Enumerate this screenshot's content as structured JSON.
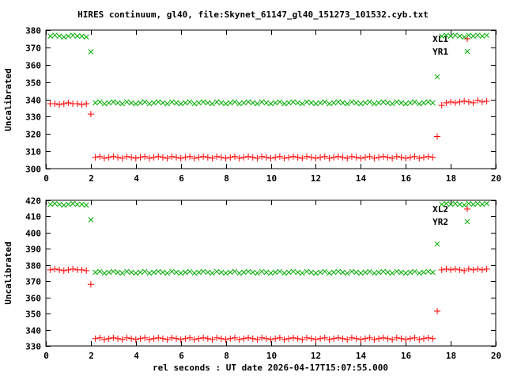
{
  "title": "HIRES continuum, gl40, file:Skynet_61147_gl40_151273_101532.cyb.txt",
  "xlabel": "rel seconds : UT date 2026-04-17T15:07:55.000",
  "colors": {
    "foreground": "#000000",
    "background": "#ffffff",
    "series_red": "#ff0000",
    "series_green": "#00aa00"
  },
  "chart_data": [
    {
      "type": "scatter",
      "panel": "top",
      "ylabel": "Uncalibrated",
      "xlim": [
        0,
        20
      ],
      "ylim": [
        300,
        380
      ],
      "xticks": [
        0,
        2,
        4,
        6,
        8,
        10,
        12,
        14,
        16,
        18,
        20
      ],
      "yticks": [
        300,
        310,
        320,
        330,
        340,
        350,
        360,
        370,
        380
      ],
      "grid": false,
      "legend": {
        "position": "top-right-inside",
        "entries": [
          "XL1",
          "YR1"
        ]
      },
      "x": [
        0.2,
        0.4,
        0.6,
        0.8,
        1,
        1.2,
        1.4,
        1.6,
        1.8,
        2,
        2.2,
        2.4,
        2.6,
        2.8,
        3,
        3.2,
        3.4,
        3.6,
        3.8,
        4,
        4.2,
        4.4,
        4.6,
        4.8,
        5,
        5.2,
        5.4,
        5.6,
        5.8,
        6,
        6.2,
        6.4,
        6.6,
        6.8,
        7,
        7.2,
        7.4,
        7.6,
        7.8,
        8,
        8.2,
        8.4,
        8.6,
        8.8,
        9,
        9.2,
        9.4,
        9.6,
        9.8,
        10,
        10.2,
        10.4,
        10.6,
        10.8,
        11,
        11.2,
        11.4,
        11.6,
        11.8,
        12,
        12.2,
        12.4,
        12.6,
        12.8,
        13,
        13.2,
        13.4,
        13.6,
        13.8,
        14,
        14.2,
        14.4,
        14.6,
        14.8,
        15,
        15.2,
        15.4,
        15.6,
        15.8,
        16,
        16.2,
        16.4,
        16.6,
        16.8,
        17,
        17.2,
        17.4,
        17.6,
        17.8,
        18,
        18.2,
        18.4,
        18.6,
        18.8,
        19,
        19.2,
        19.4,
        19.6
      ],
      "series": [
        {
          "name": "XL1",
          "marker": "plus",
          "color": "#ff0000",
          "y": [
            337.5,
            337.5,
            337,
            337.5,
            338,
            337.5,
            337.5,
            337,
            337.5,
            331.5,
            306.5,
            307,
            306,
            306.5,
            307,
            306.5,
            306,
            307,
            306.5,
            306,
            306.5,
            307,
            306,
            306.5,
            307,
            306.5,
            306,
            307,
            306.5,
            306,
            306.5,
            307,
            306,
            306.5,
            307,
            306.5,
            306,
            307,
            306.5,
            306,
            306.5,
            307,
            306,
            306.5,
            307,
            306.5,
            306,
            307,
            306.5,
            306,
            306.5,
            307,
            306,
            306.5,
            307,
            306.5,
            306,
            307,
            306.5,
            306,
            306.5,
            307,
            306,
            306.5,
            307,
            306.5,
            306,
            307,
            306.5,
            306,
            306.5,
            307,
            306,
            306.5,
            307,
            306.5,
            306,
            307,
            306.5,
            306,
            306.5,
            307,
            306,
            306.5,
            307,
            306.5,
            318.5,
            336.5,
            338,
            338.5,
            338,
            338.5,
            339,
            338.5,
            338,
            339.5,
            338.5,
            339
          ]
        },
        {
          "name": "YR1",
          "marker": "cross",
          "color": "#00aa00",
          "y": [
            376.5,
            377,
            376.5,
            376,
            376.5,
            377,
            376.5,
            376.5,
            376,
            367.5,
            338,
            338.5,
            337.5,
            338,
            338.5,
            338,
            337.5,
            338.5,
            338,
            337.5,
            338,
            338.5,
            337.5,
            338,
            338.5,
            338,
            337.5,
            338.5,
            338,
            337.5,
            338,
            338.5,
            337.5,
            338,
            338.5,
            338,
            337.5,
            338.5,
            338,
            337.5,
            338,
            338.5,
            337.5,
            338,
            338.5,
            338,
            337.5,
            338.5,
            338,
            337.5,
            338,
            338.5,
            337.5,
            338,
            338.5,
            338,
            337.5,
            338.5,
            338,
            337.5,
            338,
            338.5,
            337.5,
            338,
            338.5,
            338,
            337.5,
            338.5,
            338,
            337.5,
            338,
            338.5,
            337.5,
            338,
            338.5,
            338,
            337.5,
            338.5,
            338,
            337.5,
            338,
            338.5,
            337.5,
            338,
            338.5,
            338,
            353,
            376.5,
            377,
            376.5,
            377,
            376.5,
            376,
            377,
            376.5,
            377,
            376.5,
            377
          ]
        }
      ]
    },
    {
      "type": "scatter",
      "panel": "bottom",
      "ylabel": "Uncalibrated",
      "xlim": [
        0,
        20
      ],
      "ylim": [
        330,
        420
      ],
      "xticks": [
        0,
        2,
        4,
        6,
        8,
        10,
        12,
        14,
        16,
        18,
        20
      ],
      "yticks": [
        330,
        340,
        350,
        360,
        370,
        380,
        390,
        400,
        410,
        420
      ],
      "grid": false,
      "legend": {
        "position": "top-right-inside",
        "entries": [
          "XL2",
          "YR2"
        ]
      },
      "x": [
        0.2,
        0.4,
        0.6,
        0.8,
        1,
        1.2,
        1.4,
        1.6,
        1.8,
        2,
        2.2,
        2.4,
        2.6,
        2.8,
        3,
        3.2,
        3.4,
        3.6,
        3.8,
        4,
        4.2,
        4.4,
        4.6,
        4.8,
        5,
        5.2,
        5.4,
        5.6,
        5.8,
        6,
        6.2,
        6.4,
        6.6,
        6.8,
        7,
        7.2,
        7.4,
        7.6,
        7.8,
        8,
        8.2,
        8.4,
        8.6,
        8.8,
        9,
        9.2,
        9.4,
        9.6,
        9.8,
        10,
        10.2,
        10.4,
        10.6,
        10.8,
        11,
        11.2,
        11.4,
        11.6,
        11.8,
        12,
        12.2,
        12.4,
        12.6,
        12.8,
        13,
        13.2,
        13.4,
        13.6,
        13.8,
        14,
        14.2,
        14.4,
        14.6,
        14.8,
        15,
        15.2,
        15.4,
        15.6,
        15.8,
        16,
        16.2,
        16.4,
        16.6,
        16.8,
        17,
        17.2,
        17.4,
        17.6,
        17.8,
        18,
        18.2,
        18.4,
        18.6,
        18.8,
        19,
        19.2,
        19.4,
        19.6
      ],
      "series": [
        {
          "name": "XL2",
          "marker": "plus",
          "color": "#ff0000",
          "y": [
            377,
            377.5,
            377,
            376.5,
            377,
            377.5,
            377,
            377,
            376.5,
            368,
            334.5,
            335,
            334,
            334.5,
            335,
            334.5,
            334,
            335,
            334.5,
            334,
            334.5,
            335,
            334,
            334.5,
            335,
            334.5,
            334,
            335,
            334.5,
            334,
            334.5,
            335,
            334,
            334.5,
            335,
            334.5,
            334,
            335,
            334.5,
            334,
            334.5,
            335,
            334,
            334.5,
            335,
            334.5,
            334,
            335,
            334.5,
            334,
            334.5,
            335,
            334,
            334.5,
            335,
            334.5,
            334,
            335,
            334.5,
            334,
            334.5,
            335,
            334,
            334.5,
            335,
            334.5,
            334,
            335,
            334.5,
            334,
            334.5,
            335,
            334,
            334.5,
            335,
            334.5,
            334,
            335,
            334.5,
            334,
            334.5,
            335,
            334,
            334.5,
            335,
            334.5,
            351.5,
            377,
            377.5,
            377,
            377.5,
            377,
            376.5,
            377.5,
            377,
            377.5,
            377,
            377.5
          ]
        },
        {
          "name": "YR2",
          "marker": "cross",
          "color": "#00aa00",
          "y": [
            417.5,
            418,
            417.5,
            417,
            417.5,
            418,
            417.5,
            417.5,
            417,
            408,
            375.5,
            376,
            375,
            375.5,
            376,
            375.5,
            375,
            376,
            375.5,
            375,
            375.5,
            376,
            375,
            375.5,
            376,
            375.5,
            375,
            376,
            375.5,
            375,
            375.5,
            376,
            375,
            375.5,
            376,
            375.5,
            375,
            376,
            375.5,
            375,
            375.5,
            376,
            375,
            375.5,
            376,
            375.5,
            375,
            376,
            375.5,
            375,
            375.5,
            376,
            375,
            375.5,
            376,
            375.5,
            375,
            376,
            375.5,
            375,
            375.5,
            376,
            375,
            375.5,
            376,
            375.5,
            375,
            376,
            375.5,
            375,
            375.5,
            376,
            375,
            375.5,
            376,
            375.5,
            375,
            376,
            375.5,
            375,
            375.5,
            376,
            375,
            375.5,
            376,
            375.5,
            393,
            417.5,
            418,
            417.5,
            418,
            417.5,
            417,
            418,
            417.5,
            418,
            417.5,
            418
          ]
        }
      ]
    }
  ]
}
